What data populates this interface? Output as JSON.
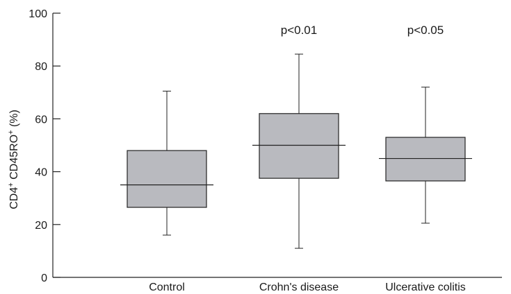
{
  "chart_data": {
    "type": "box",
    "ylabel": {
      "base1": "CD4",
      "sup1": "+",
      "base2": " CD45RO",
      "sup2": "+",
      "tail": " (%)"
    },
    "ylim": [
      0,
      100
    ],
    "yticks": [
      0,
      20,
      40,
      60,
      80,
      100
    ],
    "grid": false,
    "box_color": "#b9babf",
    "categories": [
      "Control",
      "Crohn's disease",
      "Ulcerative colitis"
    ],
    "boxes": [
      {
        "category": "Control",
        "min": 16,
        "q1": 26.5,
        "median": 35,
        "q3": 48,
        "max": 70.5,
        "annotation": ""
      },
      {
        "category": "Crohn's disease",
        "min": 11,
        "q1": 37.5,
        "median": 50,
        "q3": 62,
        "max": 84.5,
        "annotation": "p<0.01"
      },
      {
        "category": "Ulcerative colitis",
        "min": 20.5,
        "q1": 36.5,
        "median": 45,
        "q3": 53,
        "max": 72,
        "annotation": "p<0.05"
      }
    ]
  }
}
